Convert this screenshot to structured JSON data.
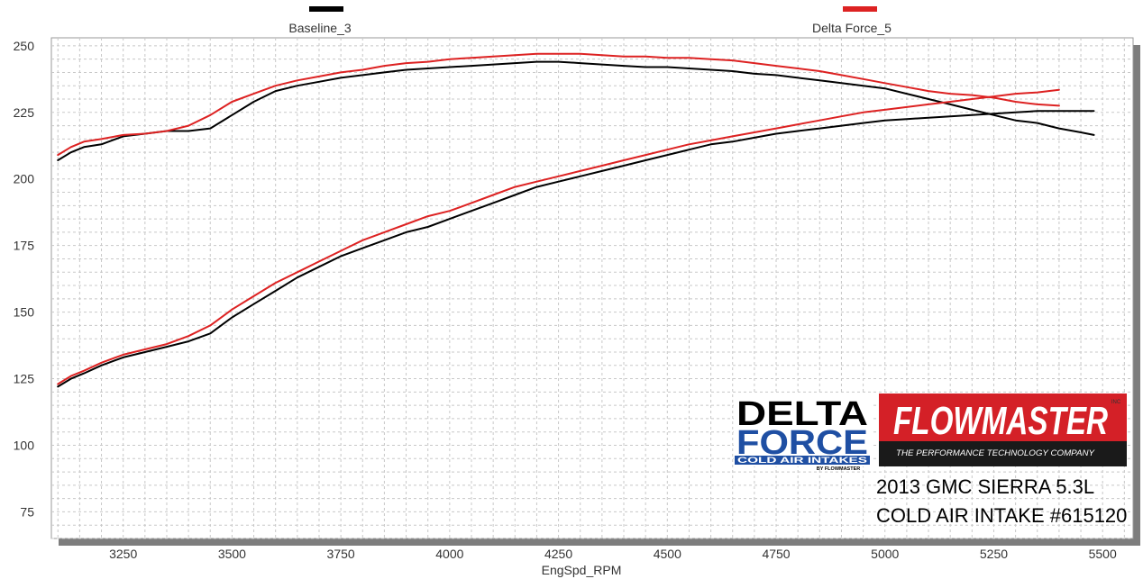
{
  "colors": {
    "baseline": "#000000",
    "delta_force": "#dd2222",
    "grid": "#c8c8c8",
    "plot_shadow": "#7d7d7d",
    "flowmaster_red": "#d42027",
    "delta_force_blue": "#1f4fa3"
  },
  "logos": {
    "delta_force_line1": "DELTA",
    "delta_force_line2": "FORCE",
    "delta_force_sub": "COLD AIR INTAKES",
    "delta_force_by": "BY FLOWMASTER",
    "flowmaster_name": "FLOWMASTER",
    "flowmaster_inc": "INC",
    "flowmaster_tagline": "THE PERFORMANCE TECHNOLOGY COMPANY"
  },
  "caption": {
    "line1": "2013 GMC SIERRA 5.3L",
    "line2": "COLD AIR INTAKE #615120"
  },
  "chart_data": {
    "type": "line",
    "title": "",
    "xlabel": "EngSpd_RPM",
    "ylabel": "",
    "xlim": [
      3085,
      5570
    ],
    "ylim": [
      65,
      253
    ],
    "x_ticks": [
      3250,
      3500,
      3750,
      4000,
      4250,
      4500,
      4750,
      5000,
      5250,
      5500
    ],
    "y_ticks": [
      75,
      100,
      125,
      150,
      175,
      200,
      225,
      250
    ],
    "grid": true,
    "legend": [
      "Baseline_3",
      "Delta Force_5"
    ],
    "legend_position": "top",
    "series": [
      {
        "name": "Baseline_3",
        "color": "#000000",
        "curves": [
          {
            "x": [
              3100,
              3130,
              3160,
              3200,
              3250,
              3300,
              3350,
              3400,
              3450,
              3500,
              3550,
              3600,
              3650,
              3700,
              3750,
              3800,
              3850,
              3900,
              3950,
              4000,
              4050,
              4100,
              4150,
              4200,
              4250,
              4300,
              4350,
              4400,
              4450,
              4500,
              4550,
              4600,
              4650,
              4700,
              4750,
              4800,
              4850,
              4900,
              4950,
              5000,
              5050,
              5100,
              5150,
              5200,
              5250,
              5300,
              5350,
              5400,
              5450,
              5480
            ],
            "y": [
              207,
              210,
              212,
              213,
              216,
              217,
              218,
              218,
              219,
              224,
              229,
              233,
              235,
              236.5,
              238,
              239,
              240,
              241,
              241.5,
              242,
              242.5,
              243,
              243.5,
              244,
              244,
              243.5,
              243,
              242.5,
              242,
              242,
              241.5,
              241,
              240.5,
              239.5,
              239,
              238,
              237,
              236,
              235,
              234,
              232,
              230,
              228,
              226,
              224,
              222,
              221,
              219,
              217.5,
              216.5
            ]
          },
          {
            "x": [
              3100,
              3130,
              3160,
              3200,
              3250,
              3300,
              3350,
              3400,
              3450,
              3500,
              3550,
              3600,
              3650,
              3700,
              3750,
              3800,
              3850,
              3900,
              3950,
              4000,
              4050,
              4100,
              4150,
              4200,
              4250,
              4300,
              4350,
              4400,
              4450,
              4500,
              4550,
              4600,
              4650,
              4700,
              4750,
              4800,
              4850,
              4900,
              4950,
              5000,
              5050,
              5100,
              5150,
              5200,
              5250,
              5300,
              5350,
              5400,
              5450,
              5480
            ],
            "y": [
              122,
              125,
              127,
              130,
              133,
              135,
              137,
              139,
              142,
              148,
              153,
              158,
              163,
              167,
              171,
              174,
              177,
              180,
              182,
              185,
              188,
              191,
              194,
              197,
              199,
              201,
              203,
              205,
              207,
              209,
              211,
              213,
              214,
              215.5,
              217,
              218,
              219,
              220,
              221,
              222,
              222.5,
              223,
              223.5,
              224,
              224.5,
              225,
              225.5,
              225.5,
              225.5,
              225.5
            ]
          }
        ]
      },
      {
        "name": "Delta Force_5",
        "color": "#dd2222",
        "curves": [
          {
            "x": [
              3100,
              3130,
              3160,
              3200,
              3250,
              3300,
              3350,
              3400,
              3450,
              3500,
              3550,
              3600,
              3650,
              3700,
              3750,
              3800,
              3850,
              3900,
              3950,
              4000,
              4050,
              4100,
              4150,
              4200,
              4250,
              4300,
              4350,
              4400,
              4450,
              4500,
              4550,
              4600,
              4650,
              4700,
              4750,
              4800,
              4850,
              4900,
              4950,
              5000,
              5050,
              5100,
              5150,
              5200,
              5250,
              5300,
              5350,
              5400
            ],
            "y": [
              209,
              212,
              214,
              215,
              216.5,
              217,
              218,
              220,
              224,
              229,
              232,
              235,
              237,
              238.5,
              240,
              241,
              242.5,
              243.5,
              244,
              245,
              245.5,
              246,
              246.5,
              247,
              247,
              247,
              246.5,
              246,
              246,
              245.5,
              245.5,
              245,
              244.5,
              243.5,
              242.5,
              241.5,
              240.5,
              239,
              237.5,
              236,
              234.5,
              233,
              232,
              231.5,
              230.5,
              229,
              228,
              227.5
            ]
          },
          {
            "x": [
              3100,
              3130,
              3160,
              3200,
              3250,
              3300,
              3350,
              3400,
              3450,
              3500,
              3550,
              3600,
              3650,
              3700,
              3750,
              3800,
              3850,
              3900,
              3950,
              4000,
              4050,
              4100,
              4150,
              4200,
              4250,
              4300,
              4350,
              4400,
              4450,
              4500,
              4550,
              4600,
              4650,
              4700,
              4750,
              4800,
              4850,
              4900,
              4950,
              5000,
              5050,
              5100,
              5150,
              5200,
              5250,
              5300,
              5350,
              5400
            ],
            "y": [
              123,
              126,
              128,
              131,
              134,
              136,
              138,
              141,
              145,
              151,
              156,
              161,
              165,
              169,
              173,
              177,
              180,
              183,
              186,
              188,
              191,
              194,
              197,
              199,
              201,
              203,
              205,
              207,
              209,
              211,
              213,
              214.5,
              216,
              217.5,
              219,
              220.5,
              222,
              223.5,
              225,
              226,
              227,
              228,
              229,
              230,
              231,
              232,
              232.5,
              233.5
            ]
          }
        ]
      }
    ]
  }
}
